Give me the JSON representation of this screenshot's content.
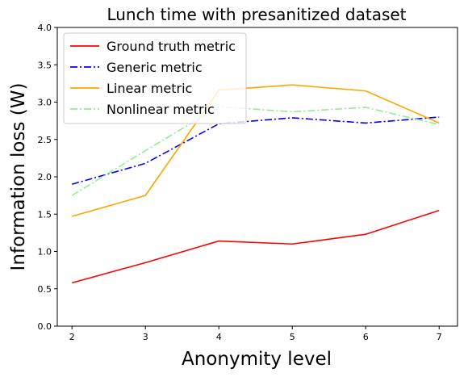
{
  "chart_data": {
    "type": "line",
    "title": "Lunch time with presanitized dataset",
    "xlabel": "Anonymity level",
    "ylabel": "Information loss (W)",
    "x": [
      2,
      3,
      4,
      5,
      6,
      7
    ],
    "xlim": [
      1.8,
      7.25
    ],
    "ylim": [
      0.0,
      4.0
    ],
    "xticks": [
      "2",
      "3",
      "4",
      "5",
      "6",
      "7"
    ],
    "yticks": [
      "0.0",
      "0.5",
      "1.0",
      "1.5",
      "2.0",
      "2.5",
      "3.0",
      "3.5",
      "4.0"
    ],
    "legend_position": "top-left",
    "grid": false,
    "series": [
      {
        "name": "Ground truth metric",
        "values": [
          0.58,
          0.85,
          1.14,
          1.1,
          1.23,
          1.55
        ],
        "color": "#ff0000",
        "style": "solid"
      },
      {
        "name": "Generic metric",
        "values": [
          1.9,
          2.18,
          2.71,
          2.79,
          2.72,
          2.8
        ],
        "color": "#0000ff",
        "style": "dashdot"
      },
      {
        "name": "Linear metric",
        "values": [
          1.47,
          1.75,
          3.16,
          3.23,
          3.15,
          2.72
        ],
        "color": "#ffa500",
        "style": "solid"
      },
      {
        "name": "Nonlinear metric",
        "values": [
          1.75,
          2.35,
          2.94,
          2.87,
          2.93,
          2.7
        ],
        "color": "#90ee90",
        "style": "dashdot"
      }
    ]
  }
}
